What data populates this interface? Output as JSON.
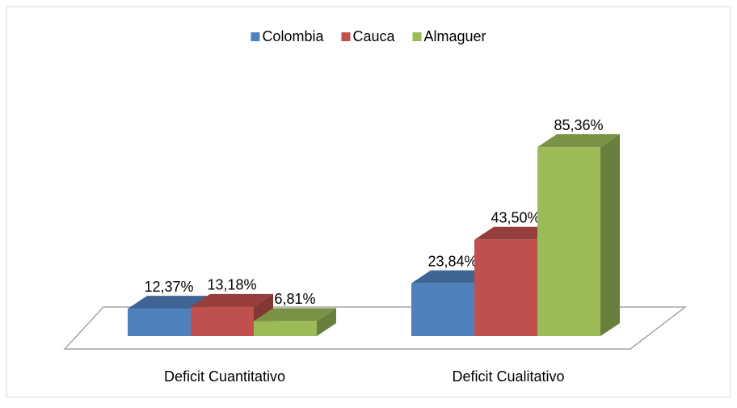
{
  "chart_data": {
    "type": "bar3d",
    "categories": [
      "Deficit Cuantitativo",
      "Deficit Cualitativo"
    ],
    "series": [
      {
        "name": "Colombia",
        "color": "#4f81bd",
        "values": [
          12.37,
          23.84
        ],
        "value_labels": [
          "12,37%",
          "23,84%"
        ]
      },
      {
        "name": "Cauca",
        "color": "#c0504d",
        "values": [
          13.18,
          43.5
        ],
        "value_labels": [
          "13,18%",
          "43,50%"
        ]
      },
      {
        "name": "Almaguer",
        "color": "#9bbb59",
        "values": [
          6.81,
          85.36
        ],
        "value_labels": [
          "6,81%",
          "85,36%"
        ]
      }
    ],
    "legend": "top"
  }
}
